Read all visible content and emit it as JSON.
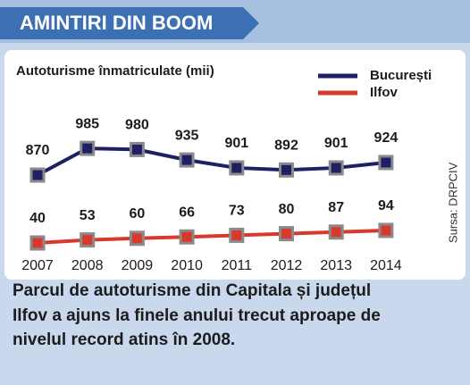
{
  "header": {
    "title": "AMINTIRI DIN BOOM"
  },
  "chart_data": {
    "type": "line",
    "subtitle": "Autoturisme înmatriculate (mii)",
    "source": "Sursa: DRPCIV",
    "categories": [
      "2007",
      "2008",
      "2009",
      "2010",
      "2011",
      "2012",
      "2013",
      "2014"
    ],
    "series": [
      {
        "name": "București",
        "color": "#1f1f66",
        "values": [
          870,
          985,
          980,
          935,
          901,
          892,
          901,
          924
        ]
      },
      {
        "name": "Ilfov",
        "color": "#d8392c",
        "values": [
          40,
          53,
          60,
          66,
          73,
          80,
          87,
          94
        ]
      }
    ],
    "legend": "top-right",
    "marker_color": "#8a8a8a"
  },
  "caption": {
    "lines": [
      "Parcul de autoturisme din Capitala și județul",
      "Ilfov a ajuns la finele anului trecut aproape de",
      "nivelul record atins în 2008."
    ]
  }
}
